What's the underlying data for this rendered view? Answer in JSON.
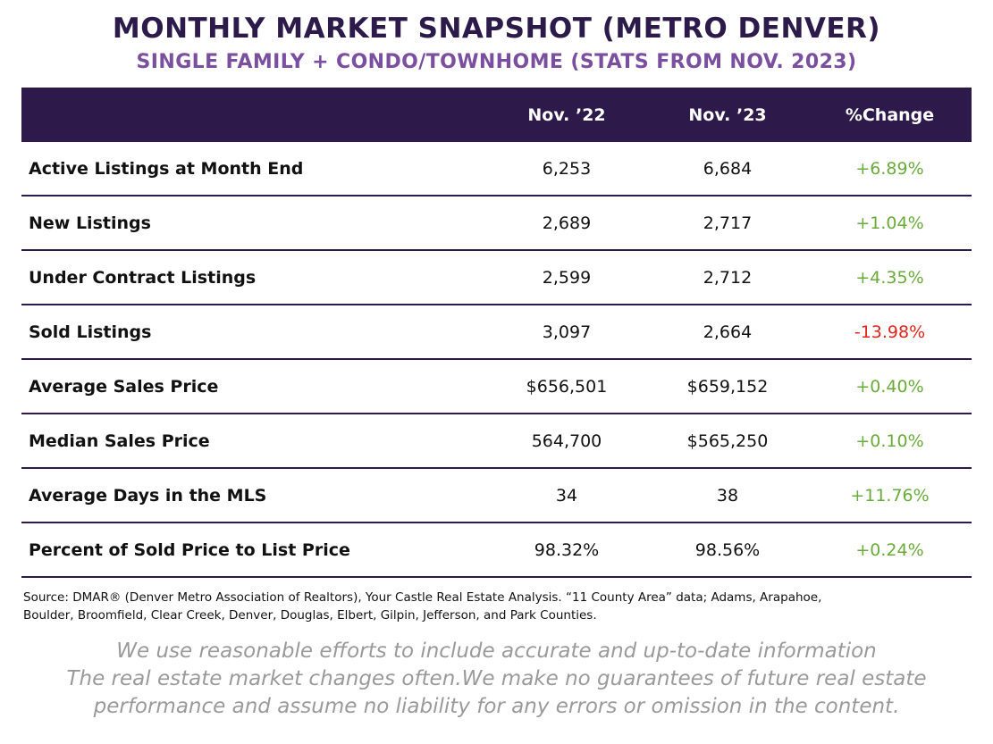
{
  "title": "MONTHLY MARKET SNAPSHOT (METRO DENVER)",
  "subtitle": "SINGLE FAMILY + CONDO/TOWNHOME (STATS FROM NOV. 2023)",
  "colors": {
    "header_bg": "#2e1a4a",
    "title": "#2b1a4a",
    "subtitle": "#7b4fa0",
    "positive": "#6aab3c",
    "negative": "#e0251b",
    "disclaimer": "#9a9a9a"
  },
  "table": {
    "headers": [
      "",
      "Nov. ’22",
      "Nov. ’23",
      "%Change"
    ],
    "rows": [
      {
        "label": "Active Listings at Month End",
        "nov22": "6,253",
        "nov23": "6,684",
        "change": "+6.89%",
        "direction": "positive"
      },
      {
        "label": "New Listings",
        "nov22": "2,689",
        "nov23": "2,717",
        "change": "+1.04%",
        "direction": "positive"
      },
      {
        "label": "Under Contract Listings",
        "nov22": "2,599",
        "nov23": "2,712",
        "change": "+4.35%",
        "direction": "positive"
      },
      {
        "label": "Sold Listings",
        "nov22": "3,097",
        "nov23": "2,664",
        "change": "-13.98%",
        "direction": "negative"
      },
      {
        "label": "Average Sales Price",
        "nov22": "$656,501",
        "nov23": "$659,152",
        "change": "+0.40%",
        "direction": "positive"
      },
      {
        "label": "Median Sales Price",
        "nov22": "564,700",
        "nov23": "$565,250",
        "change": "+0.10%",
        "direction": "positive"
      },
      {
        "label": "Average Days in the MLS",
        "nov22": "34",
        "nov23": "38",
        "change": "+11.76%",
        "direction": "positive"
      },
      {
        "label": "Percent of Sold Price to List Price",
        "nov22": "98.32%",
        "nov23": "98.56%",
        "change": "+0.24%",
        "direction": "positive"
      }
    ]
  },
  "source": {
    "line1": "Source: DMAR® (Denver Metro Association of Realtors), Your Castle Real Estate Analysis. “11 County Area” data; Adams, Arapahoe,",
    "line2": "Boulder, Broomfield, Clear Creek, Denver, Douglas, Elbert, Gilpin, Jefferson, and Park Counties."
  },
  "disclaimer": {
    "line1": "We use reasonable efforts to include accurate and up-to-date information",
    "line2": "The real estate market changes often.We make no guarantees of future real estate",
    "line3": "performance and assume no liability for any errors or omission in the content."
  }
}
